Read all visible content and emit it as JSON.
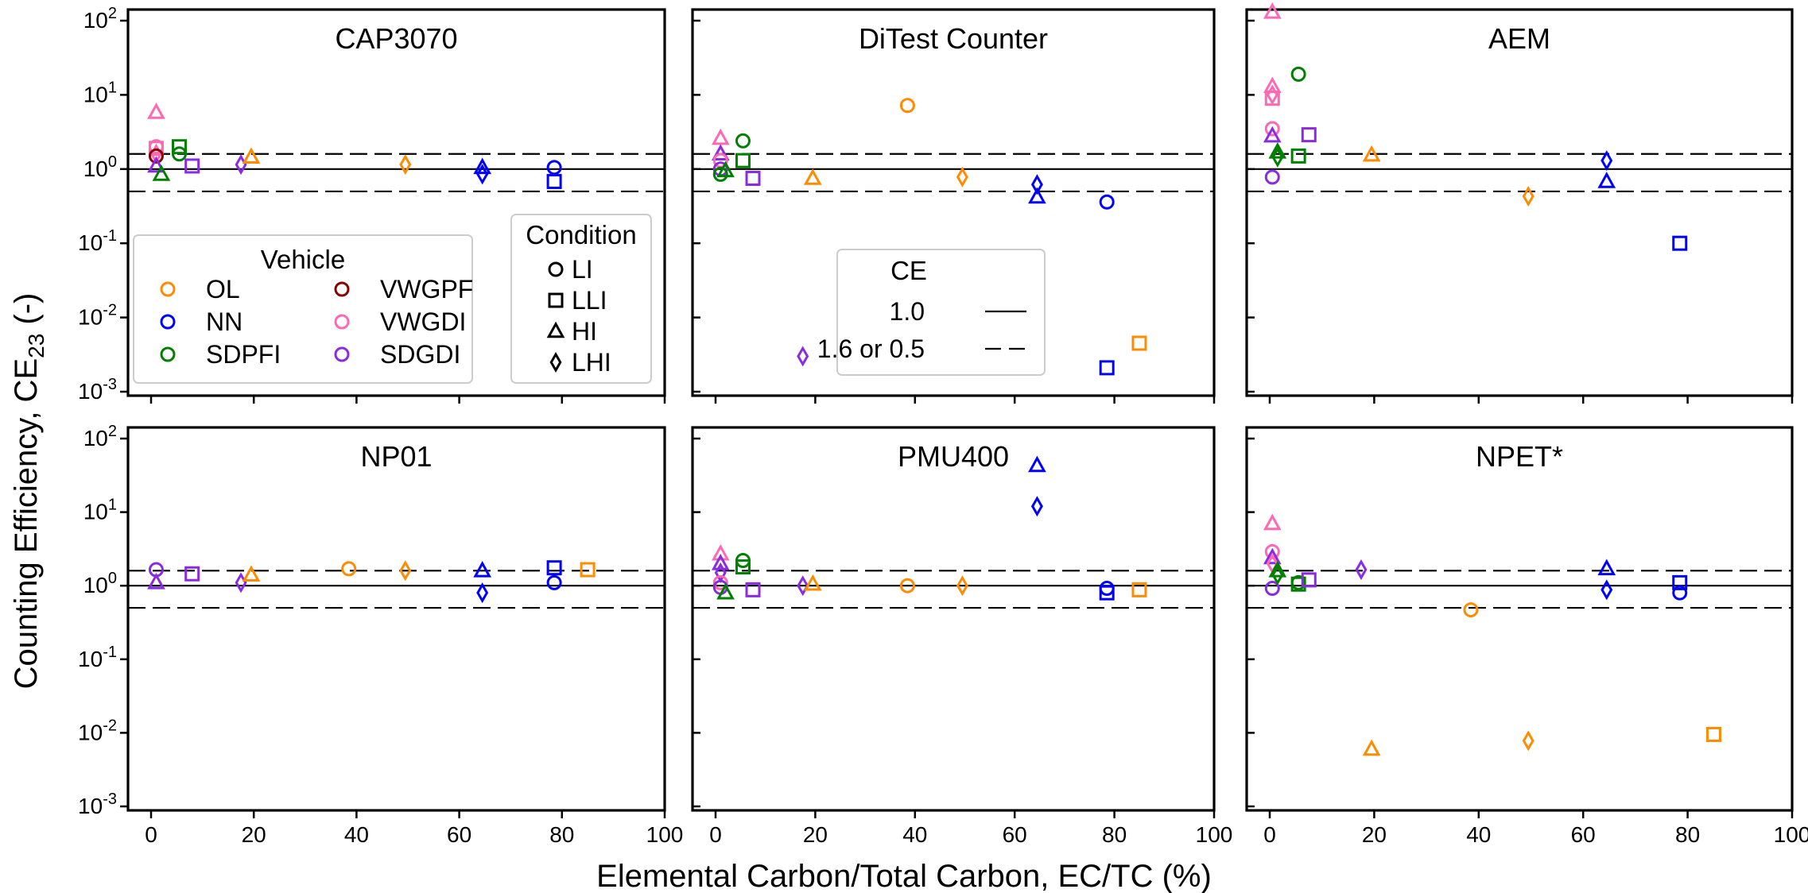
{
  "figure": {
    "xlabel": "Elemental Carbon/Total Carbon, EC/TC (%)",
    "ylabel_main": "Counting Efficiency, CE",
    "ylabel_sub": "23",
    "ylabel_tail": " (-)"
  },
  "legend": {
    "vehicle": {
      "title": "Vehicle",
      "entries": [
        {
          "label": "OL",
          "color": "#ff8c00"
        },
        {
          "label": "VWGPF",
          "color": "#8b0000"
        },
        {
          "label": "NN",
          "color": "#0000ff"
        },
        {
          "label": "VWGDI",
          "color": "#ff69b4"
        },
        {
          "label": "SDPFI",
          "color": "#008000"
        },
        {
          "label": "SDGDI",
          "color": "#8a2be2"
        }
      ]
    },
    "condition": {
      "title": "Condition",
      "entries": [
        {
          "label": "LI",
          "marker": "circle"
        },
        {
          "label": "LLI",
          "marker": "square"
        },
        {
          "label": "HI",
          "marker": "triangle"
        },
        {
          "label": "LHI",
          "marker": "diamond"
        }
      ]
    },
    "ce": {
      "title": "CE",
      "entries": [
        {
          "label": "1.0",
          "style": "solid"
        },
        {
          "label": "1.6 or 0.5",
          "style": "dashed"
        }
      ]
    }
  },
  "chart_data": [
    {
      "type": "scatter",
      "title": "CAP3070",
      "xlim": [
        0,
        100
      ],
      "ylim": [
        0.001,
        100
      ],
      "yscale": "log",
      "xticks": [
        0,
        20,
        40,
        60,
        80,
        100
      ],
      "yticks": [
        0.001,
        0.01,
        0.1,
        1,
        10,
        100
      ],
      "hlines": [
        {
          "y": 1.0,
          "style": "solid"
        },
        {
          "y": 1.6,
          "style": "dashed"
        },
        {
          "y": 0.5,
          "style": "dashed"
        }
      ],
      "points": [
        {
          "vehicle": "VWGDI",
          "condition": "LI",
          "x": 1,
          "y": 2.0
        },
        {
          "vehicle": "VWGDI",
          "condition": "LLI",
          "x": 1,
          "y": 1.9
        },
        {
          "vehicle": "VWGDI",
          "condition": "HI",
          "x": 1,
          "y": 5.8
        },
        {
          "vehicle": "VWGDI",
          "condition": "LHI",
          "x": 1,
          "y": 1.6
        },
        {
          "vehicle": "VWGPF",
          "condition": "LI",
          "x": 1,
          "y": 1.5
        },
        {
          "vehicle": "SDGDI",
          "condition": "HI",
          "x": 1,
          "y": 1.1
        },
        {
          "vehicle": "SDPFI",
          "condition": "HI",
          "x": 2,
          "y": 0.85
        },
        {
          "vehicle": "SDPFI",
          "condition": "LI",
          "x": 5.5,
          "y": 1.6
        },
        {
          "vehicle": "SDPFI",
          "condition": "LLI",
          "x": 5.5,
          "y": 2.0
        },
        {
          "vehicle": "SDGDI",
          "condition": "LLI",
          "x": 8,
          "y": 1.1
        },
        {
          "vehicle": "SDGDI",
          "condition": "LHI",
          "x": 17.5,
          "y": 1.15
        },
        {
          "vehicle": "OL",
          "condition": "HI",
          "x": 19.5,
          "y": 1.45
        },
        {
          "vehicle": "OL",
          "condition": "LHI",
          "x": 49.5,
          "y": 1.15
        },
        {
          "vehicle": "NN",
          "condition": "HI",
          "x": 64.5,
          "y": 1.05
        },
        {
          "vehicle": "NN",
          "condition": "LHI",
          "x": 64.5,
          "y": 0.85
        },
        {
          "vehicle": "NN",
          "condition": "LI",
          "x": 78.5,
          "y": 1.05
        },
        {
          "vehicle": "NN",
          "condition": "LLI",
          "x": 78.5,
          "y": 0.68
        }
      ]
    },
    {
      "type": "scatter",
      "title": "DiTest Counter",
      "xlim": [
        0,
        100
      ],
      "ylim": [
        0.001,
        100
      ],
      "yscale": "log",
      "xticks": [
        0,
        20,
        40,
        60,
        80,
        100
      ],
      "yticks": [
        0.001,
        0.01,
        0.1,
        1,
        10,
        100
      ],
      "hlines": [
        {
          "y": 1.0,
          "style": "solid"
        },
        {
          "y": 1.6,
          "style": "dashed"
        },
        {
          "y": 0.5,
          "style": "dashed"
        }
      ],
      "points": [
        {
          "vehicle": "VWGDI",
          "condition": "HI",
          "x": 1,
          "y": 2.6
        },
        {
          "vehicle": "SDGDI",
          "condition": "HI",
          "x": 1,
          "y": 1.6
        },
        {
          "vehicle": "VWGDI",
          "condition": "LI",
          "x": 1,
          "y": 1.3
        },
        {
          "vehicle": "SDGDI",
          "condition": "LI",
          "x": 1,
          "y": 1.0
        },
        {
          "vehicle": "SDPFI",
          "condition": "LI",
          "x": 1,
          "y": 0.85
        },
        {
          "vehicle": "SDPFI",
          "condition": "HI",
          "x": 2,
          "y": 0.95
        },
        {
          "vehicle": "SDPFI",
          "condition": "LI",
          "x": 5.5,
          "y": 2.4
        },
        {
          "vehicle": "SDPFI",
          "condition": "LLI",
          "x": 5.5,
          "y": 1.3
        },
        {
          "vehicle": "SDGDI",
          "condition": "LLI",
          "x": 7.5,
          "y": 0.75
        },
        {
          "vehicle": "OL",
          "condition": "HI",
          "x": 19.5,
          "y": 0.75
        },
        {
          "vehicle": "SDGDI",
          "condition": "LHI",
          "x": 17.5,
          "y": 0.003
        },
        {
          "vehicle": "OL",
          "condition": "LI",
          "x": 38.5,
          "y": 7.2
        },
        {
          "vehicle": "OL",
          "condition": "LHI",
          "x": 49.5,
          "y": 0.78
        },
        {
          "vehicle": "NN",
          "condition": "LHI",
          "x": 64.5,
          "y": 0.62
        },
        {
          "vehicle": "NN",
          "condition": "HI",
          "x": 64.5,
          "y": 0.42
        },
        {
          "vehicle": "NN",
          "condition": "LI",
          "x": 78.5,
          "y": 0.36
        },
        {
          "vehicle": "NN",
          "condition": "LLI",
          "x": 78.5,
          "y": 0.0021
        },
        {
          "vehicle": "OL",
          "condition": "LLI",
          "x": 85,
          "y": 0.0045
        }
      ]
    },
    {
      "type": "scatter",
      "title": "AEM",
      "xlim": [
        0,
        100
      ],
      "ylim": [
        0.001,
        100
      ],
      "yscale": "log",
      "xticks": [
        0,
        20,
        40,
        60,
        80,
        100
      ],
      "yticks": [
        0.001,
        0.01,
        0.1,
        1,
        10,
        100
      ],
      "hlines": [
        {
          "y": 1.0,
          "style": "solid"
        },
        {
          "y": 1.6,
          "style": "dashed"
        },
        {
          "y": 0.5,
          "style": "dashed"
        }
      ],
      "points": [
        {
          "vehicle": "VWGDI",
          "condition": "HI",
          "x": 0.5,
          "y": 130
        },
        {
          "vehicle": "VWGDI",
          "condition": "HI",
          "x": 0.5,
          "y": 13
        },
        {
          "vehicle": "VWGDI",
          "condition": "LHI",
          "x": 0.5,
          "y": 10
        },
        {
          "vehicle": "VWGDI",
          "condition": "LLI",
          "x": 0.5,
          "y": 9
        },
        {
          "vehicle": "VWGDI",
          "condition": "LI",
          "x": 0.5,
          "y": 3.5
        },
        {
          "vehicle": "SDGDI",
          "condition": "HI",
          "x": 0.5,
          "y": 2.8
        },
        {
          "vehicle": "SDGDI",
          "condition": "LI",
          "x": 0.5,
          "y": 0.78
        },
        {
          "vehicle": "SDPFI",
          "condition": "HI",
          "x": 1.5,
          "y": 1.7
        },
        {
          "vehicle": "SDPFI",
          "condition": "LHI",
          "x": 1.5,
          "y": 1.45
        },
        {
          "vehicle": "SDPFI",
          "condition": "LI",
          "x": 5.5,
          "y": 19
        },
        {
          "vehicle": "SDPFI",
          "condition": "LLI",
          "x": 5.5,
          "y": 1.5
        },
        {
          "vehicle": "SDGDI",
          "condition": "LLI",
          "x": 7.5,
          "y": 2.9
        },
        {
          "vehicle": "OL",
          "condition": "HI",
          "x": 19.5,
          "y": 1.55
        },
        {
          "vehicle": "OL",
          "condition": "LHI",
          "x": 49.5,
          "y": 0.43
        },
        {
          "vehicle": "NN",
          "condition": "LHI",
          "x": 64.5,
          "y": 1.3
        },
        {
          "vehicle": "NN",
          "condition": "HI",
          "x": 64.5,
          "y": 0.68
        },
        {
          "vehicle": "NN",
          "condition": "LLI",
          "x": 78.5,
          "y": 0.1
        }
      ]
    },
    {
      "type": "scatter",
      "title": "NP01",
      "xlim": [
        0,
        100
      ],
      "ylim": [
        0.001,
        100
      ],
      "yscale": "log",
      "xticks": [
        0,
        20,
        40,
        60,
        80,
        100
      ],
      "yticks": [
        0.001,
        0.01,
        0.1,
        1,
        10,
        100
      ],
      "hlines": [
        {
          "y": 1.0,
          "style": "solid"
        },
        {
          "y": 1.6,
          "style": "dashed"
        },
        {
          "y": 0.5,
          "style": "dashed"
        }
      ],
      "points": [
        {
          "vehicle": "SDGDI",
          "condition": "LI",
          "x": 1,
          "y": 1.65
        },
        {
          "vehicle": "SDGDI",
          "condition": "HI",
          "x": 1,
          "y": 1.1
        },
        {
          "vehicle": "SDGDI",
          "condition": "LLI",
          "x": 8,
          "y": 1.45
        },
        {
          "vehicle": "SDGDI",
          "condition": "LHI",
          "x": 17.5,
          "y": 1.1
        },
        {
          "vehicle": "OL",
          "condition": "HI",
          "x": 19.5,
          "y": 1.4
        },
        {
          "vehicle": "OL",
          "condition": "LI",
          "x": 38.5,
          "y": 1.7
        },
        {
          "vehicle": "OL",
          "condition": "LHI",
          "x": 49.5,
          "y": 1.6
        },
        {
          "vehicle": "NN",
          "condition": "HI",
          "x": 64.5,
          "y": 1.6
        },
        {
          "vehicle": "NN",
          "condition": "LHI",
          "x": 64.5,
          "y": 0.8
        },
        {
          "vehicle": "NN",
          "condition": "LLI",
          "x": 78.5,
          "y": 1.75
        },
        {
          "vehicle": "NN",
          "condition": "LI",
          "x": 78.5,
          "y": 1.1
        },
        {
          "vehicle": "OL",
          "condition": "LLI",
          "x": 85,
          "y": 1.65
        }
      ]
    },
    {
      "type": "scatter",
      "title": "PMU400",
      "xlim": [
        0,
        100
      ],
      "ylim": [
        0.001,
        100
      ],
      "yscale": "log",
      "xticks": [
        0,
        20,
        40,
        60,
        80,
        100
      ],
      "yticks": [
        0.001,
        0.01,
        0.1,
        1,
        10,
        100
      ],
      "hlines": [
        {
          "y": 1.0,
          "style": "solid"
        },
        {
          "y": 1.6,
          "style": "dashed"
        },
        {
          "y": 0.5,
          "style": "dashed"
        }
      ],
      "points": [
        {
          "vehicle": "VWGDI",
          "condition": "HI",
          "x": 1,
          "y": 2.7
        },
        {
          "vehicle": "SDGDI",
          "condition": "HI",
          "x": 1,
          "y": 2.0
        },
        {
          "vehicle": "SDGDI",
          "condition": "LHI",
          "x": 1,
          "y": 1.5
        },
        {
          "vehicle": "VWGDI",
          "condition": "LI",
          "x": 1,
          "y": 1.1
        },
        {
          "vehicle": "SDGDI",
          "condition": "LI",
          "x": 1,
          "y": 0.95
        },
        {
          "vehicle": "SDPFI",
          "condition": "HI",
          "x": 2,
          "y": 0.8
        },
        {
          "vehicle": "SDPFI",
          "condition": "LI",
          "x": 5.5,
          "y": 2.2
        },
        {
          "vehicle": "SDPFI",
          "condition": "LLI",
          "x": 5.5,
          "y": 1.8
        },
        {
          "vehicle": "SDGDI",
          "condition": "LLI",
          "x": 7.5,
          "y": 0.88
        },
        {
          "vehicle": "SDGDI",
          "condition": "LHI",
          "x": 17.5,
          "y": 1.0
        },
        {
          "vehicle": "OL",
          "condition": "HI",
          "x": 19.5,
          "y": 1.05
        },
        {
          "vehicle": "OL",
          "condition": "LI",
          "x": 38.5,
          "y": 1.0
        },
        {
          "vehicle": "OL",
          "condition": "LHI",
          "x": 49.5,
          "y": 1.0
        },
        {
          "vehicle": "NN",
          "condition": "HI",
          "x": 64.5,
          "y": 43
        },
        {
          "vehicle": "NN",
          "condition": "LHI",
          "x": 64.5,
          "y": 12
        },
        {
          "vehicle": "NN",
          "condition": "LI",
          "x": 78.5,
          "y": 0.92
        },
        {
          "vehicle": "NN",
          "condition": "LLI",
          "x": 78.5,
          "y": 0.8
        },
        {
          "vehicle": "OL",
          "condition": "LLI",
          "x": 85,
          "y": 0.88
        }
      ]
    },
    {
      "type": "scatter",
      "title": "NPET*",
      "xlim": [
        0,
        100
      ],
      "ylim": [
        0.001,
        100
      ],
      "yscale": "log",
      "xticks": [
        0,
        20,
        40,
        60,
        80,
        100
      ],
      "yticks": [
        0.001,
        0.01,
        0.1,
        1,
        10,
        100
      ],
      "hlines": [
        {
          "y": 1.0,
          "style": "solid"
        },
        {
          "y": 1.6,
          "style": "dashed"
        },
        {
          "y": 0.5,
          "style": "dashed"
        }
      ],
      "points": [
        {
          "vehicle": "VWGDI",
          "condition": "HI",
          "x": 0.5,
          "y": 7.0
        },
        {
          "vehicle": "VWGDI",
          "condition": "LI",
          "x": 0.5,
          "y": 2.9
        },
        {
          "vehicle": "SDGDI",
          "condition": "HI",
          "x": 0.5,
          "y": 2.4
        },
        {
          "vehicle": "VWGDI",
          "condition": "LHI",
          "x": 0.5,
          "y": 2.0
        },
        {
          "vehicle": "SDGDI",
          "condition": "LI",
          "x": 0.5,
          "y": 0.92
        },
        {
          "vehicle": "SDPFI",
          "condition": "HI",
          "x": 1.5,
          "y": 1.6
        },
        {
          "vehicle": "SDPFI",
          "condition": "LHI",
          "x": 1.5,
          "y": 1.4
        },
        {
          "vehicle": "SDPFI",
          "condition": "LI",
          "x": 5.5,
          "y": 1.1
        },
        {
          "vehicle": "SDPFI",
          "condition": "LLI",
          "x": 5.5,
          "y": 1.05
        },
        {
          "vehicle": "SDGDI",
          "condition": "LLI",
          "x": 7.5,
          "y": 1.2
        },
        {
          "vehicle": "SDGDI",
          "condition": "LHI",
          "x": 17.5,
          "y": 1.65
        },
        {
          "vehicle": "OL",
          "condition": "HI",
          "x": 19.5,
          "y": 0.006
        },
        {
          "vehicle": "OL",
          "condition": "LI",
          "x": 38.5,
          "y": 0.47
        },
        {
          "vehicle": "OL",
          "condition": "LHI",
          "x": 49.5,
          "y": 0.0078
        },
        {
          "vehicle": "NN",
          "condition": "HI",
          "x": 64.5,
          "y": 1.7
        },
        {
          "vehicle": "NN",
          "condition": "LHI",
          "x": 64.5,
          "y": 0.88
        },
        {
          "vehicle": "NN",
          "condition": "LLI",
          "x": 78.5,
          "y": 1.1
        },
        {
          "vehicle": "NN",
          "condition": "LI",
          "x": 78.5,
          "y": 0.8
        },
        {
          "vehicle": "OL",
          "condition": "LLI",
          "x": 85,
          "y": 0.0095
        }
      ]
    }
  ]
}
